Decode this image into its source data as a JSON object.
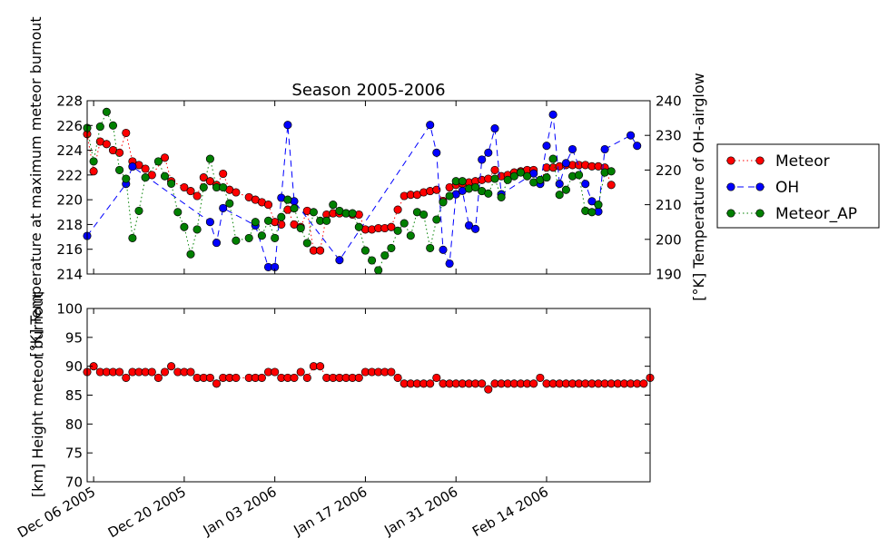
{
  "chart_data": [
    {
      "type": "line",
      "title": "Season 2005-2006",
      "ylabel": "[°K] Temperature at maximum meteor burnout",
      "y2label": "[°K] Temperature of OH-airglow",
      "xlim": [
        "2005-12-05",
        "2006-03-02"
      ],
      "ylim": [
        214,
        228
      ],
      "y2lim": [
        190,
        240
      ],
      "yticks": [
        "214",
        "216",
        "218",
        "220",
        "222",
        "224",
        "226",
        "228"
      ],
      "y2ticks": [
        "190",
        "200",
        "210",
        "220",
        "230",
        "240"
      ],
      "grid": false,
      "legend": {
        "placement": "outside-right",
        "entries": [
          "Meteor",
          "OH",
          "Meteor_AP"
        ]
      },
      "series": [
        {
          "name": "Meteor",
          "axis": "left",
          "color": "#ff0000",
          "line_style": "dotted",
          "x": [
            "2005-12-05",
            "2005-12-06",
            "2005-12-07",
            "2005-12-08",
            "2005-12-09",
            "2005-12-10",
            "2005-12-11",
            "2005-12-12",
            "2005-12-13",
            "2005-12-14",
            "2005-12-15",
            "2005-12-17",
            "2005-12-18",
            "2005-12-20",
            "2005-12-21",
            "2005-12-22",
            "2005-12-23",
            "2005-12-24",
            "2005-12-25",
            "2005-12-26",
            "2005-12-27",
            "2005-12-28",
            "2005-12-30",
            "2005-12-31",
            "2006-01-01",
            "2006-01-02",
            "2006-01-03",
            "2006-01-04",
            "2006-01-05",
            "2006-01-06",
            "2006-01-07",
            "2006-01-08",
            "2006-01-09",
            "2006-01-10",
            "2006-01-11",
            "2006-01-12",
            "2006-01-13",
            "2006-01-14",
            "2006-01-15",
            "2006-01-16",
            "2006-01-17",
            "2006-01-18",
            "2006-01-19",
            "2006-01-20",
            "2006-01-21",
            "2006-01-22",
            "2006-01-23",
            "2006-01-24",
            "2006-01-25",
            "2006-01-26",
            "2006-01-27",
            "2006-01-28",
            "2006-01-29",
            "2006-01-30",
            "2006-01-31",
            "2006-02-01",
            "2006-02-02",
            "2006-02-03",
            "2006-02-04",
            "2006-02-05",
            "2006-02-06",
            "2006-02-07",
            "2006-02-08",
            "2006-02-09",
            "2006-02-10",
            "2006-02-11",
            "2006-02-12",
            "2006-02-13",
            "2006-02-14",
            "2006-02-15",
            "2006-02-16",
            "2006-02-17",
            "2006-02-18",
            "2006-02-19",
            "2006-02-20",
            "2006-02-21",
            "2006-02-22",
            "2006-02-23",
            "2006-02-24"
          ],
          "y": [
            225.3,
            222.3,
            224.7,
            224.5,
            224.0,
            223.8,
            225.4,
            223.1,
            222.8,
            222.5,
            222.0,
            223.4,
            221.5,
            221.0,
            220.7,
            220.3,
            221.8,
            221.5,
            221.2,
            222.1,
            220.8,
            220.6,
            220.2,
            220.0,
            219.8,
            219.6,
            218.2,
            218.0,
            219.2,
            218.0,
            217.8,
            219.1,
            215.9,
            215.9,
            218.8,
            218.9,
            218.9,
            218.9,
            218.8,
            218.8,
            217.6,
            217.6,
            217.7,
            217.7,
            217.8,
            219.2,
            220.3,
            220.4,
            220.4,
            220.6,
            220.7,
            220.8,
            219.9,
            221.0,
            221.2,
            221.3,
            221.4,
            221.5,
            221.6,
            221.7,
            222.4,
            221.9,
            222.0,
            222.2,
            222.3,
            222.4,
            222.4,
            221.4,
            222.6,
            222.6,
            222.7,
            222.8,
            222.8,
            222.8,
            222.8,
            222.7,
            222.7,
            222.6,
            221.2
          ]
        },
        {
          "name": "OH",
          "axis": "right",
          "color": "#0000ff",
          "line_style": "dashed",
          "x": [
            "2005-12-05",
            "2005-12-11",
            "2005-12-12",
            "2005-12-24",
            "2005-12-25",
            "2005-12-26",
            "2005-12-31",
            "2006-01-02",
            "2006-01-03",
            "2006-01-04",
            "2006-01-05",
            "2006-01-06",
            "2006-01-13",
            "2006-01-27",
            "2006-01-28",
            "2006-01-29",
            "2006-01-30",
            "2006-01-31",
            "2006-02-01",
            "2006-02-02",
            "2006-02-03",
            "2006-02-04",
            "2006-02-05",
            "2006-02-06",
            "2006-02-07",
            "2006-02-12",
            "2006-02-13",
            "2006-02-14",
            "2006-02-15",
            "2006-02-16",
            "2006-02-17",
            "2006-02-18",
            "2006-02-20",
            "2006-02-21",
            "2006-02-22",
            "2006-02-23",
            "2006-02-27",
            "2006-02-28"
          ],
          "y": [
            201,
            216,
            221,
            205,
            199,
            209,
            204,
            192,
            192,
            212,
            233,
            211,
            194,
            233,
            225,
            197,
            193,
            213,
            214,
            204,
            203,
            223,
            225,
            232,
            213,
            219,
            216,
            227,
            236,
            216,
            222,
            226,
            216,
            211,
            208,
            226,
            230,
            227
          ]
        },
        {
          "name": "Meteor_AP",
          "axis": "left",
          "color": "#008000",
          "line_style": "dotted",
          "x": [
            "2005-12-05",
            "2005-12-06",
            "2005-12-07",
            "2005-12-08",
            "2005-12-09",
            "2005-12-10",
            "2005-12-11",
            "2005-12-12",
            "2005-12-13",
            "2005-12-14",
            "2005-12-16",
            "2005-12-17",
            "2005-12-18",
            "2005-12-19",
            "2005-12-20",
            "2005-12-21",
            "2005-12-22",
            "2005-12-23",
            "2005-12-24",
            "2005-12-25",
            "2005-12-26",
            "2005-12-27",
            "2005-12-28",
            "2005-12-30",
            "2005-12-31",
            "2006-01-01",
            "2006-01-02",
            "2006-01-03",
            "2006-01-04",
            "2006-01-05",
            "2006-01-06",
            "2006-01-07",
            "2006-01-08",
            "2006-01-09",
            "2006-01-10",
            "2006-01-11",
            "2006-01-12",
            "2006-01-13",
            "2006-01-14",
            "2006-01-15",
            "2006-01-16",
            "2006-01-17",
            "2006-01-18",
            "2006-01-19",
            "2006-01-20",
            "2006-01-21",
            "2006-01-22",
            "2006-01-23",
            "2006-01-24",
            "2006-01-25",
            "2006-01-26",
            "2006-01-27",
            "2006-01-28",
            "2006-01-29",
            "2006-01-30",
            "2006-01-31",
            "2006-02-01",
            "2006-02-02",
            "2006-02-03",
            "2006-02-04",
            "2006-02-05",
            "2006-02-06",
            "2006-02-07",
            "2006-02-08",
            "2006-02-09",
            "2006-02-10",
            "2006-02-11",
            "2006-02-12",
            "2006-02-13",
            "2006-02-14",
            "2006-02-15",
            "2006-02-16",
            "2006-02-17",
            "2006-02-18",
            "2006-02-19",
            "2006-02-20",
            "2006-02-21",
            "2006-02-22",
            "2006-02-23",
            "2006-02-24"
          ],
          "y": [
            225.8,
            223.1,
            225.9,
            227.1,
            226.0,
            222.4,
            221.7,
            216.9,
            219.1,
            221.8,
            223.1,
            221.9,
            221.3,
            219.0,
            217.8,
            215.6,
            217.6,
            221.0,
            223.3,
            221.0,
            221.0,
            219.7,
            216.7,
            216.9,
            218.2,
            217.1,
            218.3,
            216.9,
            218.6,
            220.0,
            219.3,
            217.7,
            216.5,
            219.0,
            218.3,
            218.3,
            219.6,
            219.1,
            218.9,
            218.9,
            217.8,
            215.9,
            215.1,
            214.3,
            215.5,
            216.1,
            217.5,
            218.1,
            217.1,
            219.0,
            218.8,
            216.1,
            218.4,
            219.8,
            220.3,
            221.5,
            221.5,
            220.9,
            221.0,
            220.7,
            220.5,
            221.7,
            220.2,
            221.6,
            221.9,
            222.2,
            221.9,
            221.4,
            221.6,
            221.8,
            223.3,
            220.4,
            220.8,
            221.9,
            222.0,
            219.1,
            219.0,
            219.6,
            222.2,
            222.3
          ]
        }
      ]
    },
    {
      "type": "scatter",
      "ylabel": "[km] Height meteor burnout",
      "xlim": [
        "2005-12-05",
        "2006-03-02"
      ],
      "ylim": [
        70,
        100
      ],
      "yticks": [
        "70",
        "75",
        "80",
        "85",
        "90",
        "95",
        "100"
      ],
      "xticks": [
        "Dec 06 2005",
        "Dec 20 2005",
        "Jan 03 2006",
        "Jan 17 2006",
        "Jan 31 2006",
        "Feb 14 2006"
      ],
      "grid": false,
      "series": [
        {
          "axis": "left",
          "color": "#ff0000",
          "x": [
            "2005-12-05",
            "2005-12-06",
            "2005-12-07",
            "2005-12-08",
            "2005-12-09",
            "2005-12-10",
            "2005-12-11",
            "2005-12-12",
            "2005-12-13",
            "2005-12-14",
            "2005-12-15",
            "2005-12-16",
            "2005-12-17",
            "2005-12-18",
            "2005-12-19",
            "2005-12-20",
            "2005-12-21",
            "2005-12-22",
            "2005-12-23",
            "2005-12-24",
            "2005-12-25",
            "2005-12-26",
            "2005-12-27",
            "2005-12-28",
            "2005-12-30",
            "2005-12-31",
            "2006-01-01",
            "2006-01-02",
            "2006-01-03",
            "2006-01-04",
            "2006-01-05",
            "2006-01-06",
            "2006-01-07",
            "2006-01-08",
            "2006-01-09",
            "2006-01-10",
            "2006-01-11",
            "2006-01-12",
            "2006-01-13",
            "2006-01-14",
            "2006-01-15",
            "2006-01-16",
            "2006-01-17",
            "2006-01-18",
            "2006-01-19",
            "2006-01-20",
            "2006-01-21",
            "2006-01-22",
            "2006-01-23",
            "2006-01-24",
            "2006-01-25",
            "2006-01-26",
            "2006-01-27",
            "2006-01-28",
            "2006-01-29",
            "2006-01-30",
            "2006-01-31",
            "2006-02-01",
            "2006-02-02",
            "2006-02-03",
            "2006-02-04",
            "2006-02-05",
            "2006-02-06",
            "2006-02-07",
            "2006-02-08",
            "2006-02-09",
            "2006-02-10",
            "2006-02-11",
            "2006-02-12",
            "2006-02-13",
            "2006-02-14",
            "2006-02-15",
            "2006-02-16",
            "2006-02-17",
            "2006-02-18",
            "2006-02-19",
            "2006-02-20",
            "2006-02-21",
            "2006-02-22",
            "2006-02-23",
            "2006-02-24",
            "2006-02-25",
            "2006-02-26",
            "2006-02-27",
            "2006-02-28",
            "2006-03-01",
            "2006-03-02"
          ],
          "y": [
            89,
            90,
            89,
            89,
            89,
            89,
            88,
            89,
            89,
            89,
            89,
            88,
            89,
            90,
            89,
            89,
            89,
            88,
            88,
            88,
            87,
            88,
            88,
            88,
            88,
            88,
            88,
            89,
            89,
            88,
            88,
            88,
            89,
            88,
            90,
            90,
            88,
            88,
            88,
            88,
            88,
            88,
            89,
            89,
            89,
            89,
            89,
            88,
            87,
            87,
            87,
            87,
            87,
            88,
            87,
            87,
            87,
            87,
            87,
            87,
            87,
            86,
            87,
            87,
            87,
            87,
            87,
            87,
            87,
            88,
            87,
            87,
            87,
            87,
            87,
            87,
            87,
            87,
            87,
            87,
            87,
            87,
            87,
            87,
            87,
            87,
            88
          ]
        }
      ]
    }
  ]
}
